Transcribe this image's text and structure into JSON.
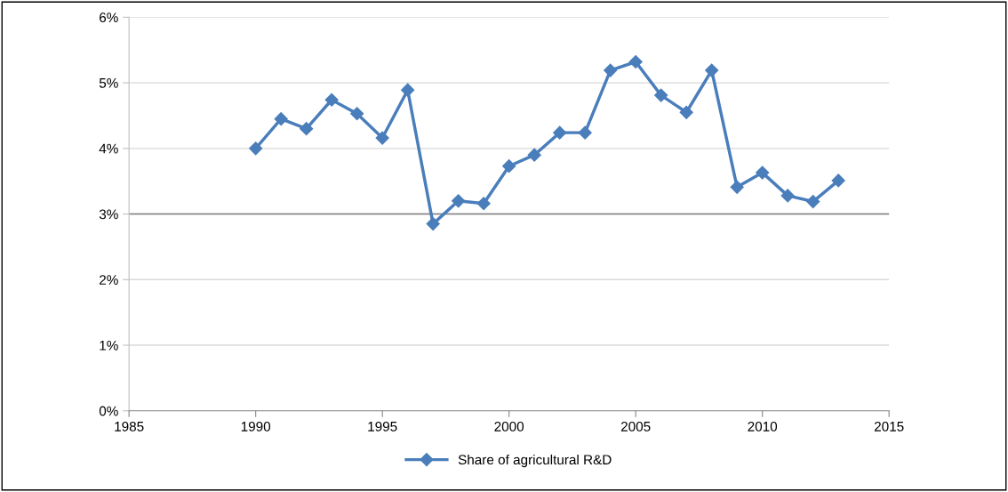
{
  "chart_data": {
    "type": "line",
    "x": [
      1990,
      1991,
      1992,
      1993,
      1994,
      1995,
      1996,
      1997,
      1998,
      1999,
      2000,
      2001,
      2002,
      2003,
      2004,
      2005,
      2006,
      2007,
      2008,
      2009,
      2010,
      2011,
      2012,
      2013
    ],
    "series": [
      {
        "name": "Share of agricultural R&D",
        "color": "#4a7ebb",
        "values": [
          4.0,
          4.45,
          4.3,
          4.74,
          4.53,
          4.16,
          4.89,
          2.85,
          3.2,
          3.16,
          3.73,
          3.9,
          4.24,
          4.24,
          5.19,
          5.32,
          4.81,
          4.55,
          5.19,
          3.41,
          3.63,
          3.28,
          3.19,
          3.51
        ]
      }
    ],
    "xlim": [
      1985,
      2015
    ],
    "xticks": [
      1985,
      1990,
      1995,
      2000,
      2005,
      2010,
      2015
    ],
    "ylim": [
      0,
      6
    ],
    "yticks": [
      {
        "value": 0,
        "label": "0%"
      },
      {
        "value": 1,
        "label": "1%"
      },
      {
        "value": 2,
        "label": "2%"
      },
      {
        "value": 3,
        "label": "3%"
      },
      {
        "value": 4,
        "label": "4%"
      },
      {
        "value": 5,
        "label": "5%"
      },
      {
        "value": 6,
        "label": "6%"
      }
    ],
    "ref_lines": [
      {
        "axis": "y",
        "value": 3,
        "color": "#7f7f7f"
      }
    ],
    "grid": "y",
    "legend": "bottom",
    "marker": "diamond",
    "line_style": "solid"
  }
}
